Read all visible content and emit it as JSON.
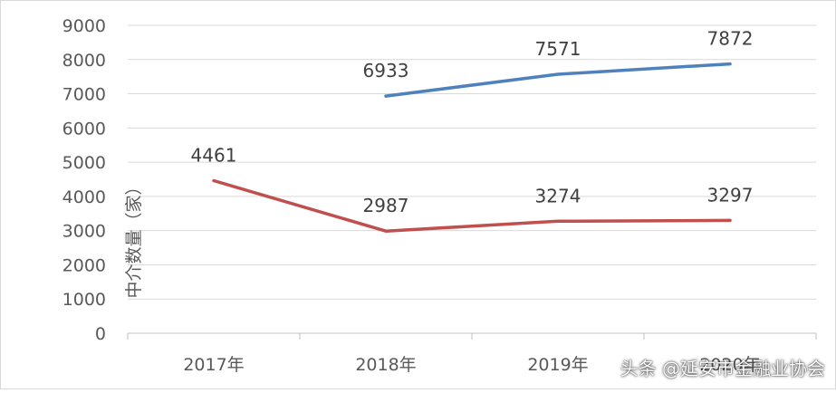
{
  "chart_data": {
    "type": "line",
    "categories": [
      "2017年",
      "2018年",
      "2019年",
      "2020年"
    ],
    "ylabel": "中介数量（家）",
    "ylim": [
      0,
      9000
    ],
    "yticks": [
      0,
      1000,
      2000,
      3000,
      4000,
      5000,
      6000,
      7000,
      8000,
      9000
    ],
    "grid": true,
    "series": [
      {
        "color": "#4f81bd",
        "values": [
          null,
          6933,
          7571,
          7872
        ]
      },
      {
        "color": "#c0504d",
        "values": [
          4461,
          2987,
          3274,
          3297
        ]
      }
    ]
  },
  "watermark": "头条 @延安市金融业协会"
}
